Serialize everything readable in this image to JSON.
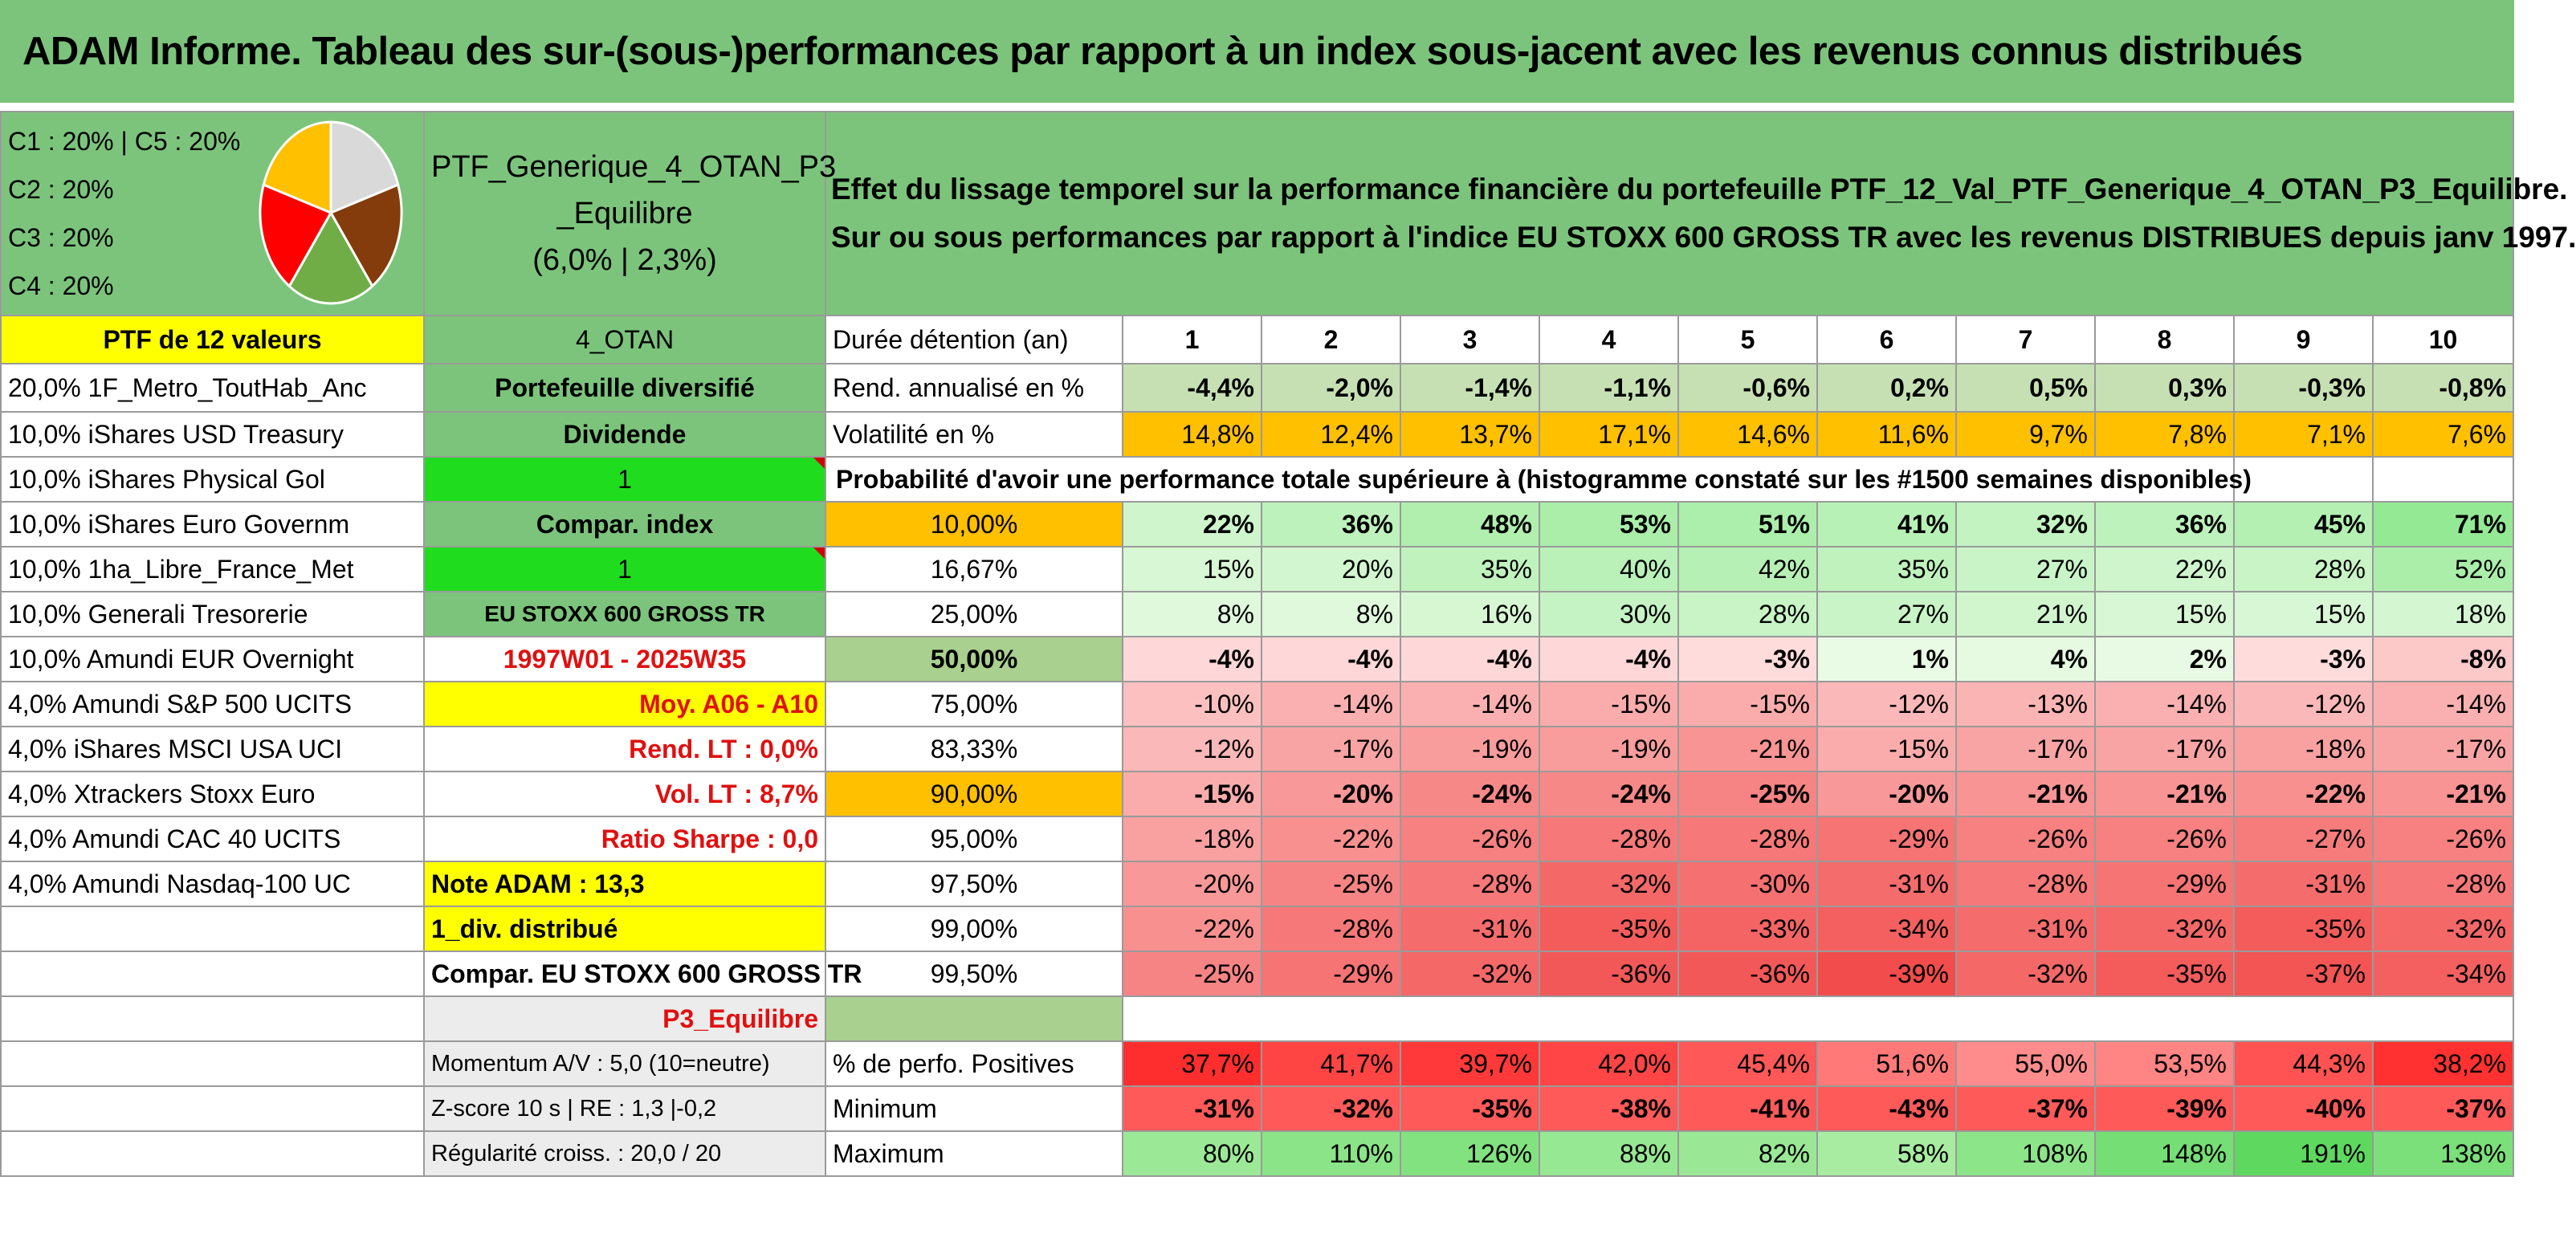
{
  "title": "ADAM Informe. Tableau des sur-(sous-)performances par rapport à un index sous-jacent avec les revenus connus distribués",
  "colors": {
    "header_green": "#7cc47c",
    "yellow": "#ffff00",
    "orange": "#ffc000",
    "bright_green": "#1fdc1f",
    "red_text": "#e01010"
  },
  "pie_legend": [
    "C1 : 20% | C5 : 20%",
    "C2 : 20%",
    "C3 : 20%",
    "C4 : 20%"
  ],
  "pie": {
    "slices": [
      {
        "value": 20,
        "color": "#d9d9d9"
      },
      {
        "value": 20,
        "color": "#843c0c"
      },
      {
        "value": 20,
        "color": "#70ad47"
      },
      {
        "value": 20,
        "color": "#ff0000"
      },
      {
        "value": 20,
        "color": "#ffc000"
      }
    ]
  },
  "portfolio": {
    "name_line1": "PTF_Generique_4_OTAN_P3",
    "name_line2": "_Equilibre",
    "perf": "(6,0% | 2,3%)"
  },
  "description": {
    "line1": "Effet du lissage temporel sur la performance financière du portefeuille PTF_12_Val_PTF_Generique_4_OTAN_P3_Equilibre.",
    "line2": "Sur ou sous performances par rapport à l'indice EU STOXX 600 GROSS TR avec les revenus DISTRIBUES depuis janv 1997."
  },
  "col_a": [
    "PTF de 12 valeurs",
    "20,0% 1F_Metro_ToutHab_Anc",
    "10,0% iShares USD Treasury",
    "10,0% iShares Physical Gol",
    "10,0% iShares Euro Governm",
    "10,0% 1ha_Libre_France_Met",
    "10,0% Generali Tresorerie",
    "10,0% Amundi EUR Overnight",
    "4,0% Amundi S&P 500 UCITS",
    "4,0% iShares MSCI USA UCI",
    "4,0% Xtrackers Stoxx Euro",
    "4,0% Amundi CAC 40 UCITS",
    "4,0% Amundi Nasdaq-100 UC"
  ],
  "col_b": {
    "otan": "4_OTAN",
    "portefeuille": "Portefeuille diversifié",
    "dividende": "Dividende",
    "one_a": "1",
    "compar_index": "Compar. index",
    "one_b": "1",
    "index_name": "EU STOXX 600 GROSS TR",
    "period": "1997W01 - 2025W35",
    "moy": "Moy. A06 - A10",
    "rend_lt": "Rend. LT : 0,0%",
    "vol_lt": "Vol. LT : 8,7%",
    "sharpe": "Ratio Sharpe : 0,0",
    "note": "Note ADAM : 13,3",
    "div": "1_div. distribué",
    "compar_full": "Compar. EU STOXX 600 GROSS TR",
    "profile": "P3_Equilibre",
    "momentum": "Momentum A/V : 5,0 (10=neutre)",
    "zscore": "Z-score 10 s | RE : 1,3 |-0,2",
    "regularite": "Régularité croiss. : 20,0 / 20"
  },
  "labels": {
    "duree": "Durée détention (an)",
    "rend": "Rend. annualisé en %",
    "vol": "Volatilité en %",
    "prob": "Probabilité d'avoir une performance totale supérieure à (histogramme constaté sur les #1500 semaines disponibles)",
    "pos": "% de perfo. Positives",
    "min": "Minimum",
    "max": "Maximum"
  },
  "years": [
    "1",
    "2",
    "3",
    "4",
    "5",
    "6",
    "7",
    "8",
    "9",
    "10"
  ],
  "rend": [
    "-4,4%",
    "-2,0%",
    "-1,4%",
    "-1,1%",
    "-0,6%",
    "0,2%",
    "0,5%",
    "0,3%",
    "-0,3%",
    "-0,8%"
  ],
  "vol": [
    "14,8%",
    "12,4%",
    "13,7%",
    "17,1%",
    "14,6%",
    "11,6%",
    "9,7%",
    "7,8%",
    "7,1%",
    "7,6%"
  ],
  "quantiles": [
    {
      "q": "10,00%",
      "vals": [
        "22%",
        "36%",
        "48%",
        "53%",
        "51%",
        "41%",
        "32%",
        "36%",
        "45%",
        "71%"
      ]
    },
    {
      "q": "16,67%",
      "vals": [
        "15%",
        "20%",
        "35%",
        "40%",
        "42%",
        "35%",
        "27%",
        "22%",
        "28%",
        "52%"
      ]
    },
    {
      "q": "25,00%",
      "vals": [
        "8%",
        "8%",
        "16%",
        "30%",
        "28%",
        "27%",
        "21%",
        "15%",
        "15%",
        "18%"
      ]
    },
    {
      "q": "50,00%",
      "vals": [
        "-4%",
        "-4%",
        "-4%",
        "-4%",
        "-3%",
        "1%",
        "4%",
        "2%",
        "-3%",
        "-8%"
      ]
    },
    {
      "q": "75,00%",
      "vals": [
        "-10%",
        "-14%",
        "-14%",
        "-15%",
        "-15%",
        "-12%",
        "-13%",
        "-14%",
        "-12%",
        "-14%"
      ]
    },
    {
      "q": "83,33%",
      "vals": [
        "-12%",
        "-17%",
        "-19%",
        "-19%",
        "-21%",
        "-15%",
        "-17%",
        "-17%",
        "-18%",
        "-17%"
      ]
    },
    {
      "q": "90,00%",
      "vals": [
        "-15%",
        "-20%",
        "-24%",
        "-24%",
        "-25%",
        "-20%",
        "-21%",
        "-21%",
        "-22%",
        "-21%"
      ]
    },
    {
      "q": "95,00%",
      "vals": [
        "-18%",
        "-22%",
        "-26%",
        "-28%",
        "-28%",
        "-29%",
        "-26%",
        "-26%",
        "-27%",
        "-26%"
      ]
    },
    {
      "q": "97,50%",
      "vals": [
        "-20%",
        "-25%",
        "-28%",
        "-32%",
        "-30%",
        "-31%",
        "-28%",
        "-29%",
        "-31%",
        "-28%"
      ]
    },
    {
      "q": "99,00%",
      "vals": [
        "-22%",
        "-28%",
        "-31%",
        "-35%",
        "-33%",
        "-34%",
        "-31%",
        "-32%",
        "-35%",
        "-32%"
      ]
    },
    {
      "q": "99,50%",
      "vals": [
        "-25%",
        "-29%",
        "-32%",
        "-36%",
        "-36%",
        "-39%",
        "-32%",
        "-35%",
        "-37%",
        "-34%"
      ]
    }
  ],
  "pos": [
    "37,7%",
    "41,7%",
    "39,7%",
    "42,0%",
    "45,4%",
    "51,6%",
    "55,0%",
    "53,5%",
    "44,3%",
    "38,2%"
  ],
  "min": [
    "-31%",
    "-32%",
    "-35%",
    "-38%",
    "-41%",
    "-43%",
    "-37%",
    "-39%",
    "-40%",
    "-37%"
  ],
  "max": [
    "80%",
    "110%",
    "126%",
    "88%",
    "82%",
    "58%",
    "108%",
    "148%",
    "191%",
    "138%"
  ]
}
